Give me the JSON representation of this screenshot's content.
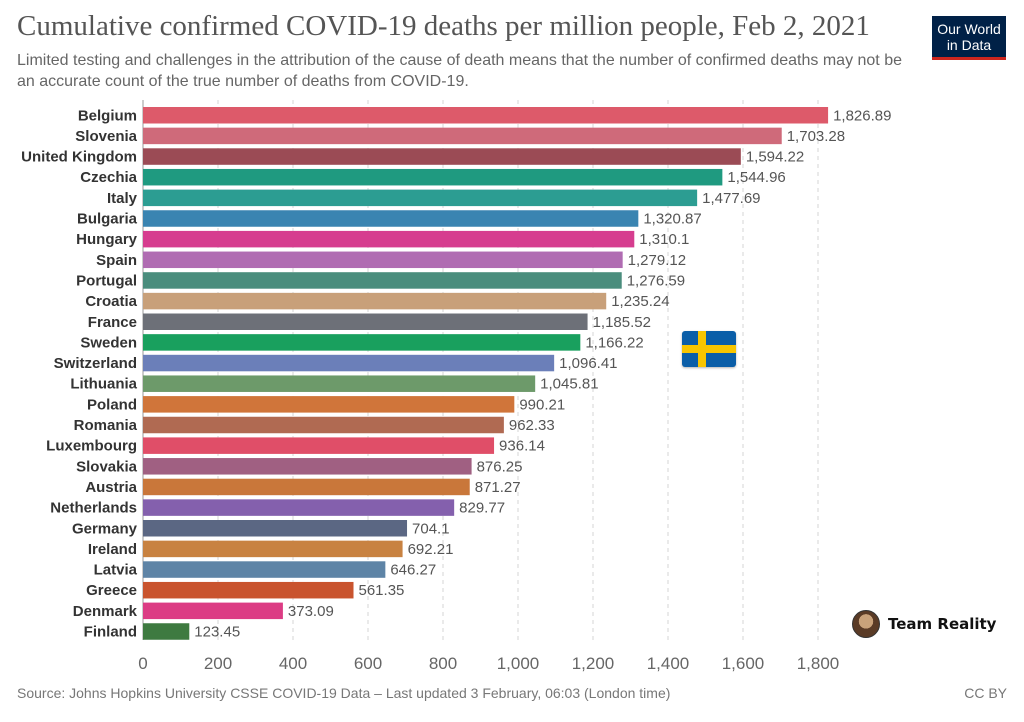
{
  "header": {
    "title": "Cumulative confirmed COVID-19 deaths per million people, Feb 2, 2021",
    "subtitle": "Limited testing and challenges in the attribution of the cause of death means that the number of confirmed deaths may not be an accurate count of the true number of deaths from COVID-19.",
    "logo_line1": "Our World",
    "logo_line2": "in Data"
  },
  "footer": {
    "source": "Source: Johns Hopkins University CSSE COVID-19 Data – Last updated 3 February, 06:03 (London time)",
    "license": "CC BY"
  },
  "watermark": {
    "text": "Team Reality"
  },
  "chart_data": {
    "type": "bar",
    "orientation": "horizontal",
    "categories": [
      "Belgium",
      "Slovenia",
      "United Kingdom",
      "Czechia",
      "Italy",
      "Bulgaria",
      "Hungary",
      "Spain",
      "Portugal",
      "Croatia",
      "France",
      "Sweden",
      "Switzerland",
      "Lithuania",
      "Poland",
      "Romania",
      "Luxembourg",
      "Slovakia",
      "Austria",
      "Netherlands",
      "Germany",
      "Ireland",
      "Latvia",
      "Greece",
      "Denmark",
      "Finland"
    ],
    "values": [
      1826.89,
      1703.28,
      1594.22,
      1544.96,
      1477.69,
      1320.87,
      1310.1,
      1279.12,
      1276.59,
      1235.24,
      1185.52,
      1166.22,
      1096.41,
      1045.81,
      990.21,
      962.33,
      936.14,
      876.25,
      871.27,
      829.77,
      704.1,
      692.21,
      646.27,
      561.35,
      373.09,
      123.45
    ],
    "value_labels": [
      "1,826.89",
      "1,703.28",
      "1,594.22",
      "1,544.96",
      "1,477.69",
      "1,320.87",
      "1,310.1",
      "1,279.12",
      "1,276.59",
      "1,235.24",
      "1,185.52",
      "1,166.22",
      "1,096.41",
      "1,045.81",
      "990.21",
      "962.33",
      "936.14",
      "876.25",
      "871.27",
      "829.77",
      "704.1",
      "692.21",
      "646.27",
      "561.35",
      "373.09",
      "123.45"
    ],
    "colors": [
      "#dd5a6a",
      "#cf6a7a",
      "#9b4b55",
      "#1f9a80",
      "#2c9d92",
      "#3a84b1",
      "#d63d8f",
      "#b06cb2",
      "#4a8d7d",
      "#c8a07a",
      "#6d7078",
      "#19a05e",
      "#6b7fb9",
      "#6d9a6a",
      "#d0753a",
      "#b06a52",
      "#e04e68",
      "#a06082",
      "#c9773a",
      "#8460ad",
      "#5b6783",
      "#c88241",
      "#5e84a6",
      "#c9542e",
      "#dc3c84",
      "#3e7a40"
    ],
    "xlim": [
      0,
      1850
    ],
    "xticks": [
      0,
      200,
      400,
      600,
      800,
      1000,
      1200,
      1400,
      1600,
      1800
    ],
    "xtick_labels": [
      "0",
      "200",
      "400",
      "600",
      "800",
      "1,000",
      "1,200",
      "1,400",
      "1,600",
      "1,800"
    ],
    "grid": "vertical dashed"
  }
}
